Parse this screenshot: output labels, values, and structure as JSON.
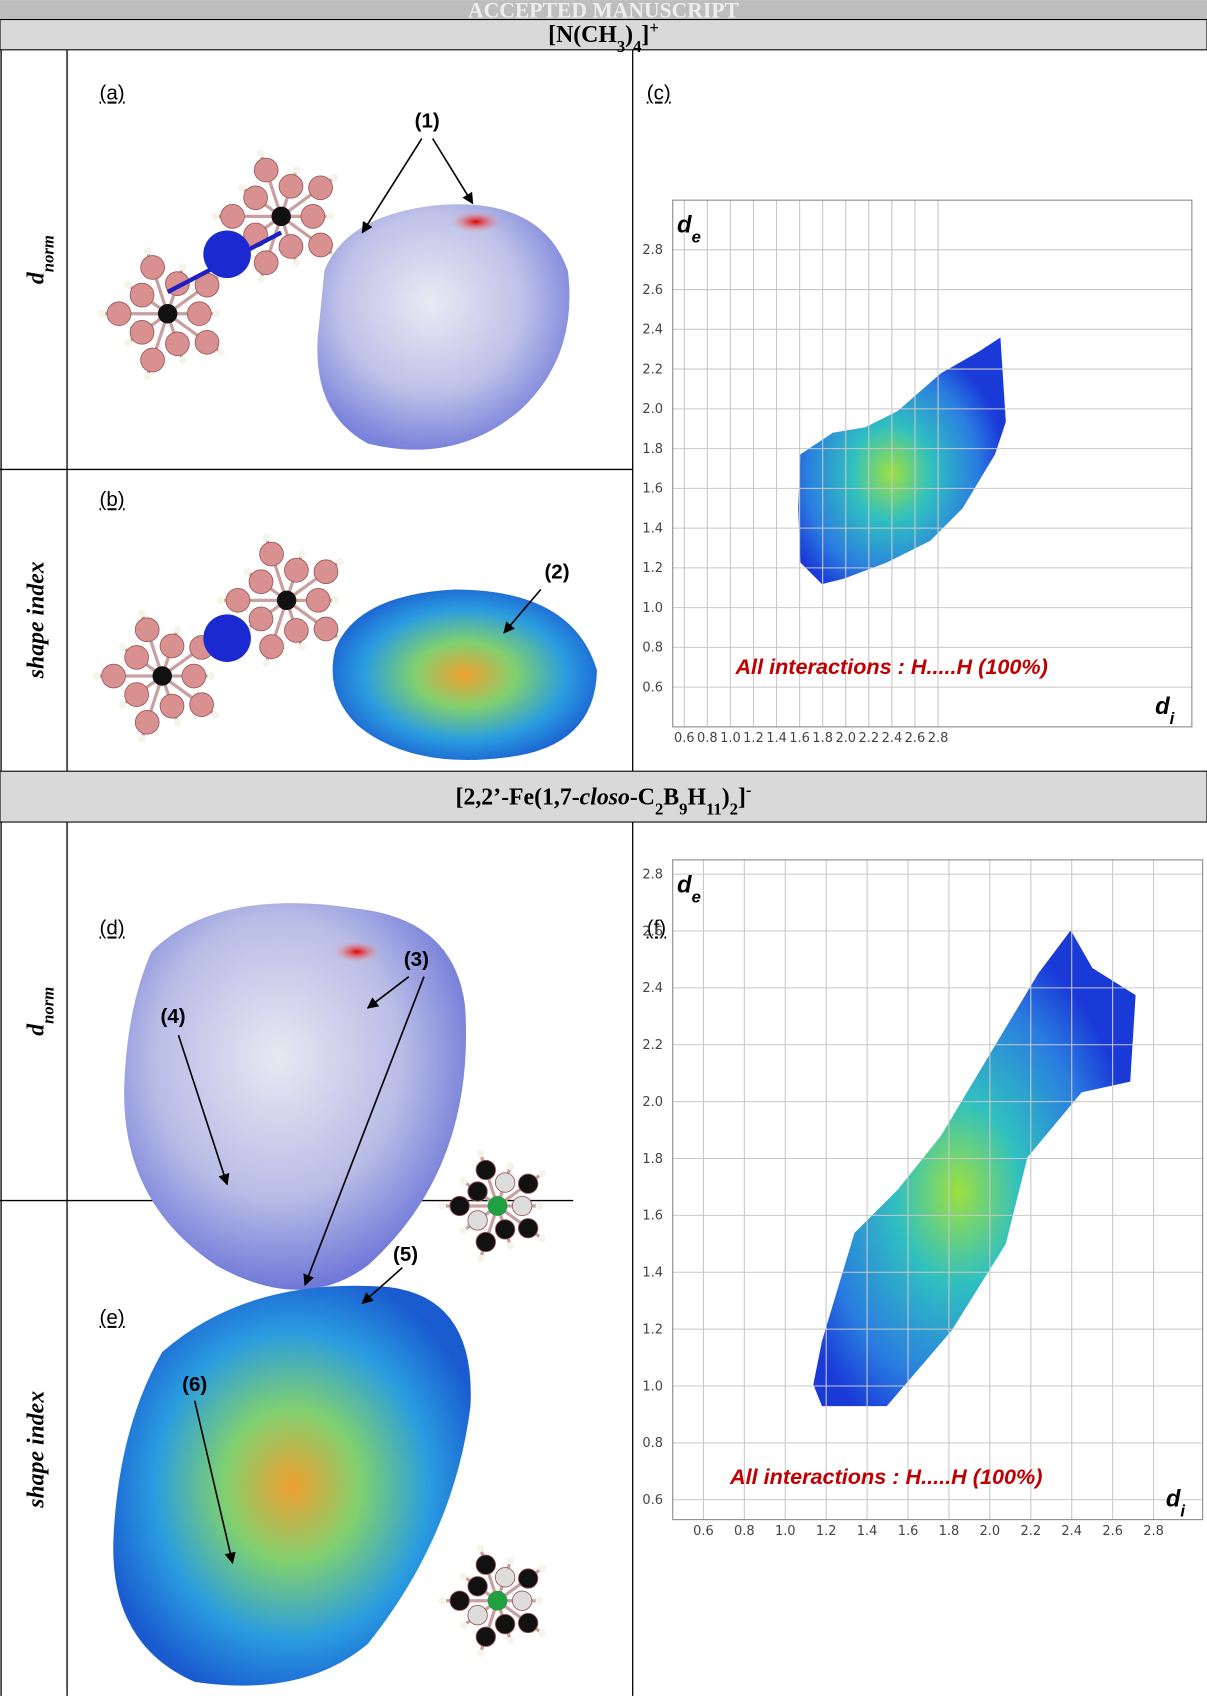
{
  "watermark": "ACCEPTED MANUSCRIPT",
  "sections": [
    {
      "title": [
        "[N(CH",
        "3",
        ")",
        "4",
        "]",
        "+"
      ],
      "rows": [
        {
          "label": [
            "d",
            "norm"
          ],
          "panel": "(a)",
          "callouts": [
            "(1)"
          ]
        },
        {
          "label": [
            "shape index"
          ],
          "panel": "(b)",
          "callouts": [
            "(2)"
          ]
        }
      ],
      "plot": {
        "type": "scatter",
        "panel": "(c)",
        "y_label": [
          "d",
          "e"
        ],
        "x_label": [
          "d",
          "i"
        ],
        "annotation": "All interactions : H.....H (100%)",
        "xlim": [
          0.5,
          5.0
        ],
        "ylim": [
          0.4,
          3.05
        ],
        "grid": true,
        "xticks": [
          0.6,
          0.8,
          {
            "value": 1.0,
            "label": "1.0"
          },
          1.2,
          1.4,
          1.6,
          1.8,
          {
            "value": 2.0,
            "label": "2.0"
          },
          2.2,
          2.4,
          2.6,
          2.8
        ],
        "yticks": [
          0.6,
          0.8,
          {
            "value": 1.0,
            "label": "1.0"
          },
          1.2,
          1.4,
          1.6,
          1.8,
          {
            "value": 2.0,
            "label": "2.0"
          },
          2.2,
          2.4,
          2.6,
          2.8
        ]
      }
    },
    {
      "title": [
        "[2,2’-Fe(1,7-",
        "closo",
        "-C",
        "2",
        "B",
        "9",
        "H",
        "11",
        ")",
        "2",
        "]",
        "-"
      ],
      "rows": [
        {
          "label": [
            "d",
            "norm"
          ],
          "panel": "(d)",
          "callouts": [
            "(3)",
            "(4)"
          ]
        },
        {
          "label": [
            "shape index"
          ],
          "panel": "(e)",
          "callouts": [
            "(5)",
            "(6)"
          ]
        }
      ],
      "plot": {
        "type": "scatter",
        "panel": "(f)",
        "y_label": [
          "d",
          "e"
        ],
        "x_label": [
          "d",
          "i"
        ],
        "annotation": "All interactions : H.....H (100%)",
        "xlim": [
          0.45,
          3.04
        ],
        "ylim": [
          0.53,
          2.85
        ],
        "grid": true,
        "xticks": [
          0.6,
          0.8,
          {
            "value": 1.0,
            "label": "1.0"
          },
          1.2,
          1.4,
          1.6,
          1.8,
          {
            "value": 2.0,
            "label": "2.0"
          },
          2.2,
          2.4,
          2.6,
          2.8
        ],
        "yticks": [
          0.6,
          0.8,
          {
            "value": 1.0,
            "label": "1.0"
          },
          1.2,
          1.4,
          1.6,
          1.8,
          {
            "value": 2.0,
            "label": "2.0"
          },
          2.2,
          2.4,
          2.6,
          2.8
        ]
      }
    }
  ]
}
